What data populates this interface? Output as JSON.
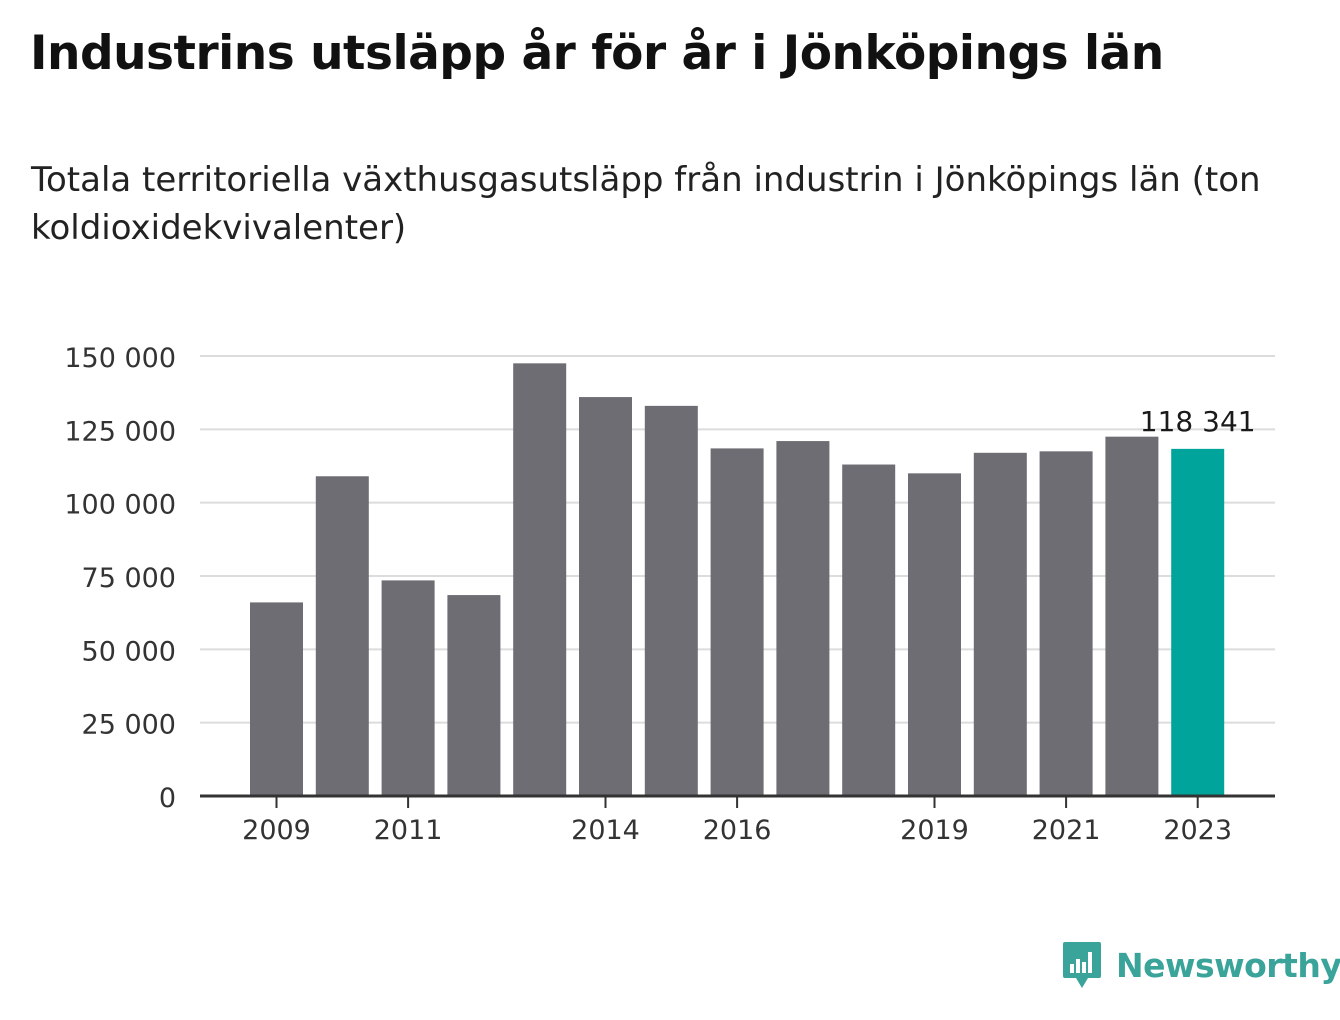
{
  "title": "Industrins utsläpp år för år i Jönköpings län",
  "subtitle": "Totala territoriella växthusgasutsläpp från industrin i Jönköpings län (ton koldioxidekvivalenter)",
  "brand": {
    "name": "Newsworthy",
    "icon": "newsworthy-logo-icon",
    "color": "#3aa39a"
  },
  "chart_data": {
    "type": "bar",
    "categories": [
      "2009",
      "2010",
      "2011",
      "2012",
      "2013",
      "2014",
      "2015",
      "2016",
      "2017",
      "2018",
      "2019",
      "2020",
      "2021",
      "2022",
      "2023"
    ],
    "values": [
      66000,
      109000,
      73500,
      68500,
      147500,
      136000,
      133000,
      118500,
      121000,
      113000,
      110000,
      117000,
      117500,
      122500,
      118341
    ],
    "x_tick_labels": [
      "2009",
      "2011",
      "2014",
      "2016",
      "2019",
      "2021",
      "2023"
    ],
    "y_ticks": [
      0,
      25000,
      50000,
      75000,
      100000,
      125000,
      150000
    ],
    "y_tick_labels": [
      "0",
      "25 000",
      "50 000",
      "75 000",
      "100 000",
      "125 000",
      "150 000"
    ],
    "ylim": [
      0,
      150000
    ],
    "highlight": {
      "category": "2023",
      "label": "118 341",
      "color": "#00a49a"
    },
    "bar_color": "#6d6d73",
    "grid": true,
    "xlabel": "",
    "ylabel": ""
  }
}
